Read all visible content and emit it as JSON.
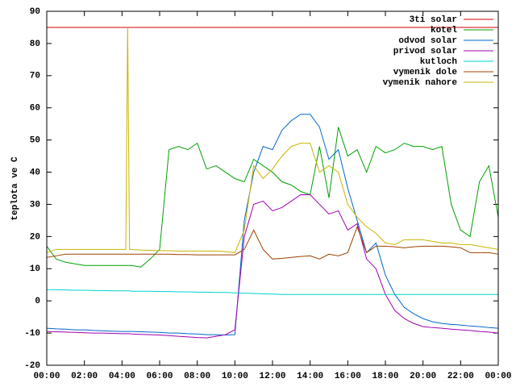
{
  "chart_data": {
    "type": "line",
    "y_label": "teplota ve C",
    "x": [
      0,
      0.5,
      1,
      1.5,
      2,
      2.5,
      3,
      3.5,
      4,
      4.2,
      4.3,
      4.4,
      4.5,
      5,
      5.5,
      6,
      6.5,
      7,
      7.5,
      8,
      8.5,
      9,
      9.5,
      10,
      10.5,
      11,
      11.5,
      12,
      12.5,
      13,
      13.5,
      14,
      14.5,
      15,
      15.5,
      16,
      16.5,
      17,
      17.5,
      18,
      18.5,
      19,
      19.5,
      20,
      20.5,
      21,
      21.5,
      22,
      22.5,
      23,
      23.5,
      24
    ],
    "xlim": [
      0,
      24
    ],
    "xticks": [
      {
        "value": 0,
        "label": "00:00"
      },
      {
        "value": 2,
        "label": "02:00"
      },
      {
        "value": 4,
        "label": "04:00"
      },
      {
        "value": 6,
        "label": "06:00"
      },
      {
        "value": 8,
        "label": "08:00"
      },
      {
        "value": 10,
        "label": "10:00"
      },
      {
        "value": 12,
        "label": "12:00"
      },
      {
        "value": 14,
        "label": "14:00"
      },
      {
        "value": 16,
        "label": "16:00"
      },
      {
        "value": 18,
        "label": "18:00"
      },
      {
        "value": 20,
        "label": "20:00"
      },
      {
        "value": 22,
        "label": "22:00"
      },
      {
        "value": 24,
        "label": "00:00"
      }
    ],
    "ylim": [
      -20,
      90
    ],
    "yticks": [
      -20,
      -10,
      0,
      10,
      20,
      30,
      40,
      50,
      60,
      70,
      80,
      90
    ],
    "legend": "top-right",
    "series": [
      {
        "name": "3ti solar",
        "color": "#d00000",
        "values": [
          85,
          85,
          85,
          85,
          85,
          85,
          85,
          85,
          85,
          85,
          85,
          85,
          85,
          85,
          85,
          85,
          85,
          85,
          85,
          85,
          85,
          85,
          85,
          85,
          85,
          85,
          85,
          85,
          85,
          85,
          85,
          85,
          85,
          85,
          85,
          85,
          85,
          85,
          85,
          85,
          85,
          85,
          85,
          85,
          85,
          85,
          85,
          85,
          85,
          85,
          85,
          85
        ]
      },
      {
        "name": "kotel",
        "color": "#00a000",
        "values": [
          17,
          13,
          12,
          11.5,
          11,
          11,
          11,
          11,
          11,
          11,
          11,
          11,
          11,
          10.5,
          13,
          16,
          47,
          48,
          47,
          49,
          41,
          42,
          40,
          38,
          37,
          44,
          42,
          40,
          37,
          36,
          34,
          33,
          48,
          32,
          54,
          45,
          47,
          40,
          48,
          46,
          47,
          49,
          48,
          48,
          47,
          48,
          30,
          22,
          20,
          37,
          42,
          26
        ]
      },
      {
        "name": "odvod solar",
        "color": "#0066cc",
        "values": [
          -8.5,
          -8.7,
          -8.8,
          -9,
          -9,
          -9.2,
          -9.3,
          -9.4,
          -9.5,
          -9.5,
          -9.5,
          -9.5,
          -9.5,
          -9.6,
          -9.7,
          -9.8,
          -10,
          -10,
          -10.2,
          -10.3,
          -10.5,
          -10.5,
          -10.6,
          -10.5,
          25,
          40,
          48,
          47,
          53,
          56,
          58,
          58,
          54,
          44,
          47,
          35,
          25,
          15,
          18,
          8,
          2,
          -2,
          -4,
          -5.5,
          -6.5,
          -7,
          -7.3,
          -7.5,
          -7.8,
          -8,
          -8.3,
          -8.5
        ]
      },
      {
        "name": "privod solar",
        "color": "#a000b0",
        "values": [
          -9.5,
          -9.6,
          -9.7,
          -9.8,
          -9.9,
          -10,
          -10,
          -10.1,
          -10.2,
          -10.2,
          -10.2,
          -10.2,
          -10.3,
          -10.4,
          -10.5,
          -10.6,
          -10.8,
          -11,
          -11.2,
          -11.4,
          -11.5,
          -11,
          -10.5,
          -9,
          20,
          30,
          31,
          28,
          29,
          31,
          33,
          33,
          30,
          27,
          28,
          22,
          24,
          13,
          10,
          2,
          -3,
          -5.5,
          -7,
          -8,
          -8.3,
          -8.5,
          -8.8,
          -9,
          -9.2,
          -9.5,
          -9.7,
          -10
        ]
      },
      {
        "name": "kutloch",
        "color": "#00d0d0",
        "values": [
          3.5,
          3.5,
          3.4,
          3.3,
          3.3,
          3.2,
          3.2,
          3.1,
          3.1,
          3.1,
          3.1,
          3.1,
          3,
          3,
          3,
          2.9,
          2.9,
          2.8,
          2.8,
          2.7,
          2.7,
          2.6,
          2.6,
          2.5,
          2.4,
          2.3,
          2.2,
          2.1,
          2,
          2,
          2,
          2,
          2,
          2,
          2,
          2,
          2,
          2,
          2,
          2,
          2,
          2,
          2,
          2,
          2,
          2,
          2,
          2,
          2,
          2,
          2,
          2
        ]
      },
      {
        "name": "vymenik dole",
        "color": "#a04000",
        "values": [
          13.5,
          14,
          14.5,
          14.5,
          14.5,
          14.5,
          14.5,
          14.5,
          14.5,
          14.5,
          14.5,
          14.5,
          14.5,
          14.5,
          14.5,
          14.5,
          14.5,
          14.4,
          14.4,
          14.3,
          14.3,
          14.3,
          14.3,
          14.3,
          16,
          22,
          16,
          13,
          13.2,
          13.5,
          13.8,
          14,
          13,
          14.5,
          14,
          15,
          23,
          15,
          17,
          17,
          16.8,
          16.5,
          16.8,
          17,
          17,
          17,
          16.8,
          16.5,
          15,
          15,
          15,
          14.5
        ]
      },
      {
        "name": "vymenik nahore",
        "color": "#c8b400",
        "values": [
          15,
          16,
          16,
          16,
          16,
          16,
          16,
          16,
          16,
          16,
          85,
          16,
          16,
          15.8,
          15.7,
          15.6,
          15.6,
          15.5,
          15.5,
          15.5,
          15.5,
          15.5,
          15.3,
          15,
          22,
          42,
          38,
          41,
          45,
          48,
          49,
          49,
          40,
          42,
          40,
          30,
          26,
          23,
          21,
          18,
          17.5,
          19,
          19,
          19,
          18.5,
          18,
          18,
          17.5,
          17.5,
          17,
          16.5,
          16
        ]
      }
    ]
  }
}
